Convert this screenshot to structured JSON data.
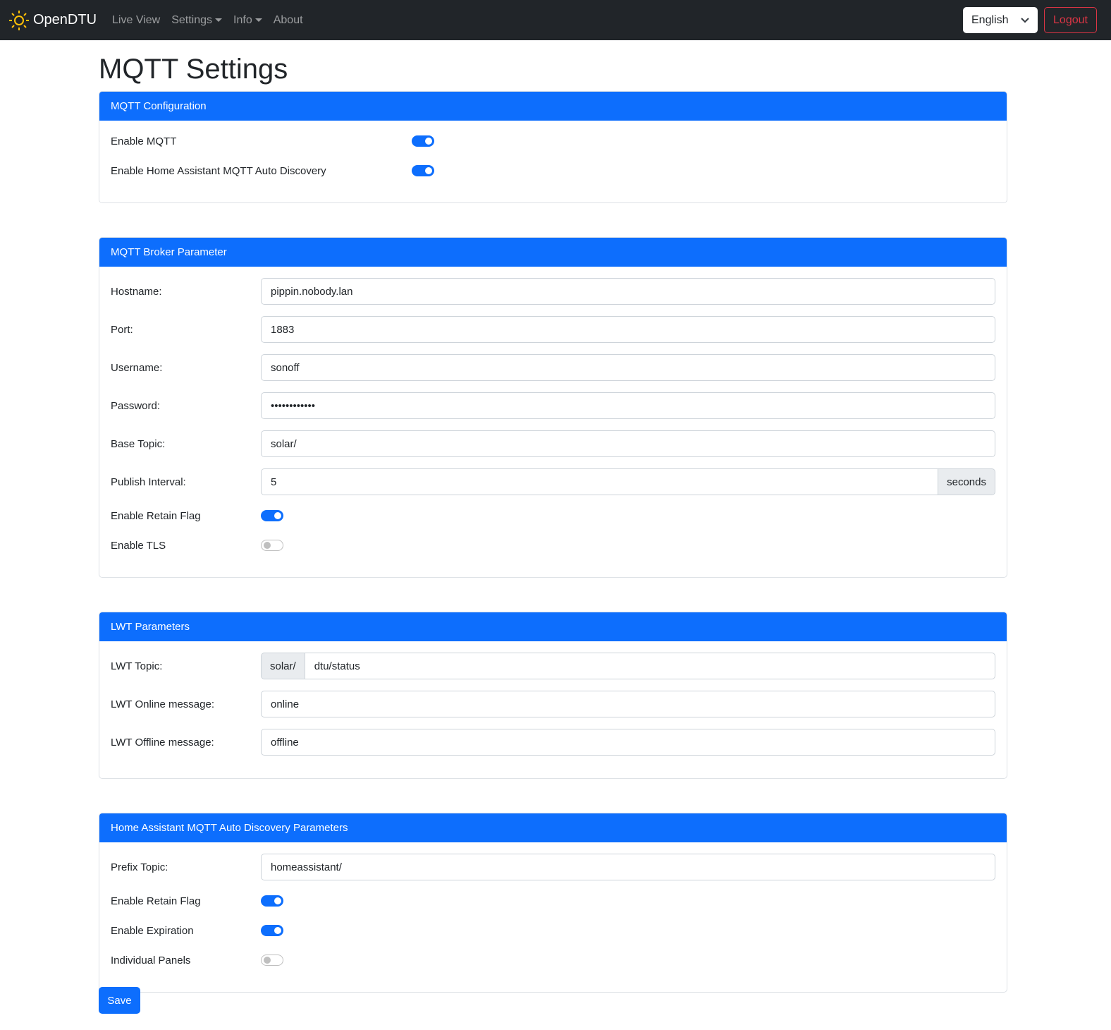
{
  "nav": {
    "brand": "OpenDTU",
    "items": [
      "Live View",
      "Settings",
      "Info",
      "About"
    ],
    "language": "English",
    "logout": "Logout"
  },
  "title": "MQTT Settings",
  "config": {
    "header": "MQTT Configuration",
    "enable_mqtt": {
      "label": "Enable MQTT",
      "on": true
    },
    "enable_hass": {
      "label": "Enable Home Assistant MQTT Auto Discovery",
      "on": true
    }
  },
  "broker": {
    "header": "MQTT Broker Parameter",
    "hostname": {
      "label": "Hostname:",
      "value": "pippin.nobody.lan"
    },
    "port": {
      "label": "Port:",
      "value": "1883"
    },
    "username": {
      "label": "Username:",
      "value": "sonoff"
    },
    "password": {
      "label": "Password:",
      "value": "••••••••••••"
    },
    "base_topic": {
      "label": "Base Topic:",
      "value": "solar/"
    },
    "interval": {
      "label": "Publish Interval:",
      "value": "5",
      "unit": "seconds"
    },
    "retain": {
      "label": "Enable Retain Flag",
      "on": true
    },
    "tls": {
      "label": "Enable TLS",
      "on": false
    }
  },
  "lwt": {
    "header": "LWT Parameters",
    "topic": {
      "label": "LWT Topic:",
      "prefix": "solar/",
      "value": "dtu/status"
    },
    "online": {
      "label": "LWT Online message:",
      "value": "online"
    },
    "offline": {
      "label": "LWT Offline message:",
      "value": "offline"
    }
  },
  "hass": {
    "header": "Home Assistant MQTT Auto Discovery Parameters",
    "prefix": {
      "label": "Prefix Topic:",
      "value": "homeassistant/"
    },
    "retain": {
      "label": "Enable Retain Flag",
      "on": true
    },
    "expiration": {
      "label": "Enable Expiration",
      "on": true
    },
    "panels": {
      "label": "Individual Panels",
      "on": false
    }
  },
  "save": "Save",
  "colors": {
    "primary": "#0d6efd",
    "navbar": "#212529",
    "danger": "#dc3545",
    "sun": "#ffc107"
  }
}
